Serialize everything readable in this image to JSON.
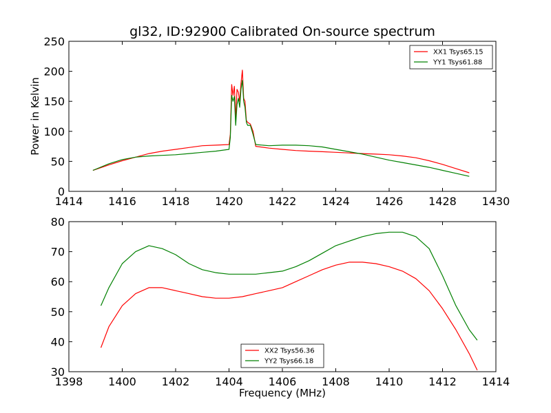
{
  "chart_data": [
    {
      "type": "line",
      "title": "gl32, ID:92900 Calibrated On-source spectrum",
      "xlabel": "",
      "ylabel": "Power in Kelvin",
      "xlim": [
        1414,
        1430
      ],
      "ylim": [
        0,
        250
      ],
      "xticks": [
        1414,
        1416,
        1418,
        1420,
        1422,
        1424,
        1426,
        1428,
        1430
      ],
      "yticks": [
        0,
        50,
        100,
        150,
        200,
        250
      ],
      "legend_position": "top-right",
      "series": [
        {
          "name": "XX1 Tsys65.15",
          "color": "#ff0000",
          "x": [
            1414.9,
            1415.5,
            1416.0,
            1416.5,
            1417.0,
            1417.5,
            1418.0,
            1418.5,
            1419.0,
            1419.5,
            1420.0,
            1420.05,
            1420.1,
            1420.15,
            1420.2,
            1420.25,
            1420.3,
            1420.35,
            1420.4,
            1420.45,
            1420.5,
            1420.55,
            1420.6,
            1420.65,
            1420.7,
            1420.8,
            1420.9,
            1421.0,
            1421.5,
            1422.0,
            1422.5,
            1423.0,
            1423.5,
            1424.0,
            1424.5,
            1425.0,
            1425.5,
            1426.0,
            1426.5,
            1427.0,
            1427.5,
            1428.0,
            1428.5,
            1429.0
          ],
          "y": [
            35,
            44,
            51,
            57,
            63,
            67,
            70,
            73,
            76,
            77,
            78,
            95,
            178,
            160,
            175,
            120,
            170,
            165,
            150,
            180,
            202,
            155,
            150,
            118,
            115,
            112,
            100,
            75,
            72,
            70,
            68,
            67,
            66,
            65,
            64,
            63,
            62,
            61,
            59,
            56,
            51,
            45,
            38,
            31
          ]
        },
        {
          "name": "YY1 Tsys61.88",
          "color": "#008000",
          "x": [
            1414.9,
            1415.5,
            1416.0,
            1416.5,
            1417.0,
            1417.5,
            1418.0,
            1418.5,
            1419.0,
            1419.5,
            1420.0,
            1420.05,
            1420.1,
            1420.15,
            1420.2,
            1420.25,
            1420.3,
            1420.35,
            1420.4,
            1420.45,
            1420.5,
            1420.55,
            1420.6,
            1420.65,
            1420.7,
            1420.8,
            1420.9,
            1421.0,
            1421.5,
            1422.0,
            1422.5,
            1423.0,
            1423.5,
            1424.0,
            1424.5,
            1425.0,
            1425.5,
            1426.0,
            1426.5,
            1427.0,
            1427.5,
            1428.0,
            1428.5,
            1429.0
          ],
          "y": [
            35,
            46,
            53,
            57,
            59,
            60,
            61,
            63,
            65,
            67,
            70,
            90,
            160,
            150,
            158,
            110,
            145,
            155,
            140,
            170,
            185,
            150,
            140,
            115,
            110,
            110,
            95,
            78,
            76,
            77,
            77,
            76,
            74,
            70,
            66,
            62,
            57,
            52,
            48,
            44,
            40,
            35,
            30,
            25
          ]
        }
      ]
    },
    {
      "type": "line",
      "title": "",
      "xlabel": "Frequency (MHz)",
      "ylabel": "",
      "xlim": [
        1398,
        1414
      ],
      "ylim": [
        30,
        80
      ],
      "xticks": [
        1398,
        1400,
        1402,
        1404,
        1406,
        1408,
        1410,
        1412,
        1414
      ],
      "yticks": [
        30,
        40,
        50,
        60,
        70,
        80
      ],
      "legend_position": "bottom-center",
      "series": [
        {
          "name": "XX2 Tsys56.36",
          "color": "#ff0000",
          "x": [
            1399.2,
            1399.5,
            1400.0,
            1400.5,
            1401.0,
            1401.5,
            1402.0,
            1402.5,
            1403.0,
            1403.5,
            1404.0,
            1404.5,
            1405.0,
            1405.5,
            1406.0,
            1406.5,
            1407.0,
            1407.5,
            1408.0,
            1408.5,
            1409.0,
            1409.5,
            1410.0,
            1410.5,
            1411.0,
            1411.5,
            1412.0,
            1412.5,
            1413.0,
            1413.3
          ],
          "y": [
            38,
            45,
            52,
            56,
            58,
            58,
            57,
            56,
            55,
            54.5,
            54.5,
            55,
            56,
            57,
            58,
            60,
            62,
            64,
            65.5,
            66.5,
            66.5,
            66,
            65,
            63.5,
            61,
            57,
            51,
            44,
            36,
            30.5
          ]
        },
        {
          "name": "YY2 Tsys66.18",
          "color": "#008000",
          "x": [
            1399.2,
            1399.5,
            1400.0,
            1400.5,
            1401.0,
            1401.5,
            1402.0,
            1402.5,
            1403.0,
            1403.5,
            1404.0,
            1404.5,
            1405.0,
            1405.5,
            1406.0,
            1406.5,
            1407.0,
            1407.5,
            1408.0,
            1408.5,
            1409.0,
            1409.5,
            1410.0,
            1410.5,
            1411.0,
            1411.5,
            1412.0,
            1412.5,
            1413.0,
            1413.3
          ],
          "y": [
            52,
            58,
            66,
            70,
            72,
            71,
            69,
            66,
            64,
            63,
            62.5,
            62.5,
            62.5,
            63,
            63.5,
            65,
            67,
            69.5,
            72,
            73.5,
            75,
            76,
            76.5,
            76.5,
            75,
            71,
            62,
            52,
            44,
            40.5
          ]
        }
      ]
    }
  ]
}
